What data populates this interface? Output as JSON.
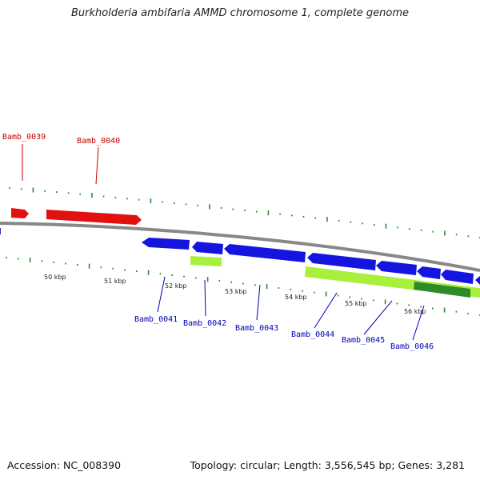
{
  "title": "Burkholderia ambifaria AMMD chromosome 1, complete genome",
  "footer": {
    "accession": "Accession: NC_008390",
    "summary": "Topology: circular; Length: 3,556,545 bp; Genes: 3,281"
  },
  "colors": {
    "forward_gene": "#e31010",
    "reverse_gene": "#1515e0",
    "feature_light": "#a8f03c",
    "feature_dark": "#2f8a2a",
    "ticks": "#2a8a2a",
    "backbone": "#888888"
  },
  "scale_labels": [
    "50 kbp",
    "51 kbp",
    "52 kbp",
    "53 kbp",
    "54 kbp",
    "55 kbp",
    "56 kbp"
  ],
  "gene_labels": [
    {
      "name": "Bamb_0039",
      "strand": "forward"
    },
    {
      "name": "Bamb_0040",
      "strand": "forward"
    },
    {
      "name": "Bamb_0041",
      "strand": "reverse"
    },
    {
      "name": "Bamb_0042",
      "strand": "reverse"
    },
    {
      "name": "Bamb_0043",
      "strand": "reverse"
    },
    {
      "name": "Bamb_0044",
      "strand": "reverse"
    },
    {
      "name": "Bamb_0045",
      "strand": "reverse"
    },
    {
      "name": "Bamb_0046",
      "strand": "reverse"
    }
  ]
}
